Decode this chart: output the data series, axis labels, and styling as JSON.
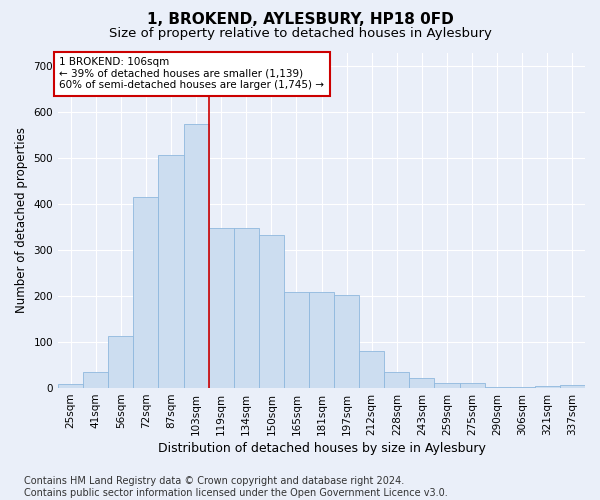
{
  "title": "1, BROKEND, AYLESBURY, HP18 0FD",
  "subtitle": "Size of property relative to detached houses in Aylesbury",
  "xlabel": "Distribution of detached houses by size in Aylesbury",
  "ylabel": "Number of detached properties",
  "categories": [
    "25sqm",
    "41sqm",
    "56sqm",
    "72sqm",
    "87sqm",
    "103sqm",
    "119sqm",
    "134sqm",
    "150sqm",
    "165sqm",
    "181sqm",
    "197sqm",
    "212sqm",
    "228sqm",
    "243sqm",
    "259sqm",
    "275sqm",
    "290sqm",
    "306sqm",
    "321sqm",
    "337sqm"
  ],
  "values": [
    8,
    35,
    113,
    415,
    507,
    575,
    348,
    348,
    332,
    210,
    210,
    203,
    80,
    35,
    22,
    12,
    12,
    3,
    2,
    5,
    7
  ],
  "bar_color": "#ccddf0",
  "bar_edge_color": "#8fb8de",
  "vline_x": 5.5,
  "vline_color": "#cc0000",
  "annotation_text": "1 BROKEND: 106sqm\n← 39% of detached houses are smaller (1,139)\n60% of semi-detached houses are larger (1,745) →",
  "annotation_box_color": "#ffffff",
  "annotation_box_edge_color": "#cc0000",
  "ylim": [
    0,
    730
  ],
  "yticks": [
    0,
    100,
    200,
    300,
    400,
    500,
    600,
    700
  ],
  "footer_text": "Contains HM Land Registry data © Crown copyright and database right 2024.\nContains public sector information licensed under the Open Government Licence v3.0.",
  "background_color": "#eaeff9",
  "plot_background_color": "#eaeff9",
  "grid_color": "#ffffff",
  "title_fontsize": 11,
  "subtitle_fontsize": 9.5,
  "xlabel_fontsize": 9,
  "ylabel_fontsize": 8.5,
  "tick_fontsize": 7.5,
  "footer_fontsize": 7,
  "annot_fontsize": 7.5
}
